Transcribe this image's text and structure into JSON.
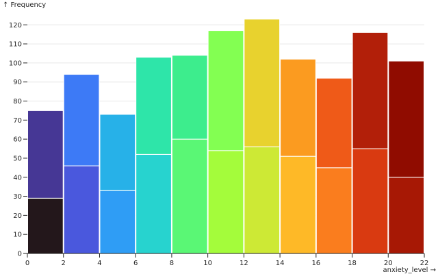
{
  "chart_data": {
    "type": "bar",
    "subtype": "stacked-histogram",
    "x_label": "anxiety_level →",
    "y_label": "↑ Frequency",
    "x_domain": [
      0,
      22
    ],
    "y_domain": [
      0,
      128
    ],
    "x_ticks": [
      0,
      2,
      4,
      6,
      8,
      10,
      12,
      14,
      16,
      18,
      20,
      22
    ],
    "y_ticks": [
      0,
      10,
      20,
      30,
      40,
      50,
      60,
      70,
      80,
      90,
      100,
      110,
      120
    ],
    "grid": "horizontal",
    "bins": [
      {
        "x0": 0,
        "x1": 2,
        "values": [
          29,
          46
        ],
        "colors": [
          "#23171b",
          "#463795"
        ]
      },
      {
        "x0": 2,
        "x1": 4,
        "values": [
          46,
          48
        ],
        "colors": [
          "#4a58dd",
          "#3d7af6"
        ]
      },
      {
        "x0": 4,
        "x1": 6,
        "values": [
          33,
          40
        ],
        "colors": [
          "#2f9df5",
          "#27b1e8"
        ]
      },
      {
        "x0": 6,
        "x1": 8,
        "values": [
          52,
          51
        ],
        "colors": [
          "#27d3cf",
          "#2ee5a9"
        ]
      },
      {
        "x0": 8,
        "x1": 10,
        "values": [
          60,
          44
        ],
        "colors": [
          "#5af775",
          "#3ded8d"
        ]
      },
      {
        "x0": 10,
        "x1": 12,
        "values": [
          54,
          63
        ],
        "colors": [
          "#a4fc3b",
          "#83ff52"
        ]
      },
      {
        "x0": 12,
        "x1": 14,
        "values": [
          56,
          67
        ],
        "colors": [
          "#cde935",
          "#e8d22e"
        ]
      },
      {
        "x0": 14,
        "x1": 16,
        "values": [
          51,
          51
        ],
        "colors": [
          "#feb927",
          "#fb9b20"
        ]
      },
      {
        "x0": 16,
        "x1": 18,
        "values": [
          45,
          47
        ],
        "colors": [
          "#fa7d1e",
          "#ef5a18"
        ]
      },
      {
        "x0": 18,
        "x1": 20,
        "values": [
          55,
          61
        ],
        "colors": [
          "#d93a11",
          "#b21f09"
        ]
      },
      {
        "x0": 20,
        "x1": 22,
        "values": [
          40,
          61
        ],
        "colors": [
          "#a71805",
          "#900c00"
        ]
      }
    ]
  }
}
